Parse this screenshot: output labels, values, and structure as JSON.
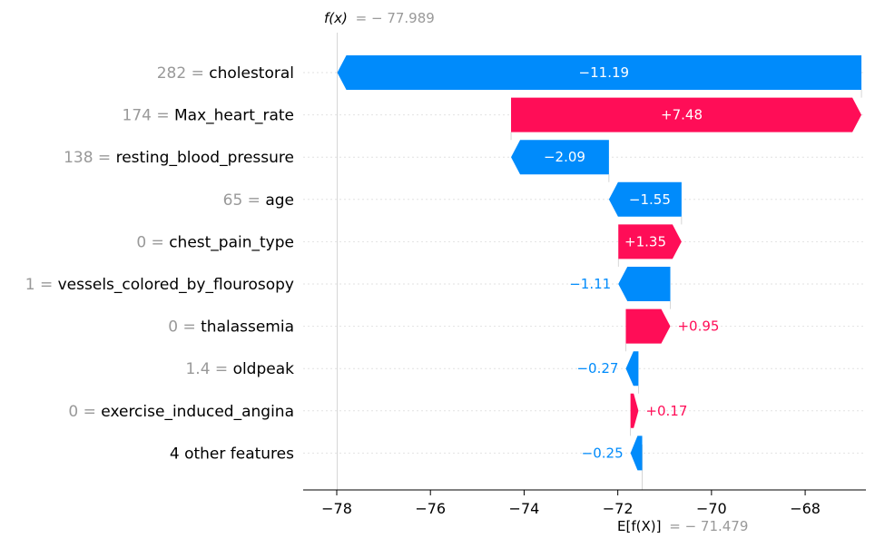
{
  "chart_data": {
    "type": "waterfall",
    "fx_label": "f(x)",
    "fx_value_text": "= − 77.989",
    "fx_value": -77.989,
    "efx_label": "E[f(X)]",
    "efx_value_text": "= − 71.479",
    "efx_value": -71.479,
    "xlim": [
      -78.7,
      -66.6
    ],
    "ticks": [
      -78,
      -76,
      -74,
      -72,
      -70,
      -68
    ],
    "tick_labels": [
      "−78",
      "−76",
      "−74",
      "−72",
      "−70",
      "−68"
    ],
    "features": [
      {
        "name": "cholestoral",
        "value_text": "282",
        "shap": -11.19,
        "label": "−11.19"
      },
      {
        "name": "Max_heart_rate",
        "value_text": "174",
        "shap": 7.48,
        "label": "+7.48"
      },
      {
        "name": "resting_blood_pressure",
        "value_text": "138",
        "shap": -2.09,
        "label": "−2.09"
      },
      {
        "name": "age",
        "value_text": "65",
        "shap": -1.55,
        "label": "−1.55"
      },
      {
        "name": "chest_pain_type",
        "value_text": "0",
        "shap": 1.35,
        "label": "+1.35"
      },
      {
        "name": "vessels_colored_by_flourosopy",
        "value_text": "1",
        "shap": -1.11,
        "label": "−1.11"
      },
      {
        "name": "thalassemia",
        "value_text": "0",
        "shap": 0.95,
        "label": "+0.95"
      },
      {
        "name": "oldpeak",
        "value_text": "1.4",
        "shap": -0.27,
        "label": "−0.27"
      },
      {
        "name": "exercise_induced_angina",
        "value_text": "0",
        "shap": 0.17,
        "label": "+0.17"
      },
      {
        "name": "4 other features",
        "value_text": "",
        "shap": -0.25,
        "label": "−0.25"
      }
    ],
    "colors": {
      "positive": "#ff0d57",
      "negative": "#008bfb",
      "value_text": "#999999",
      "grid": "#cccccc"
    }
  }
}
